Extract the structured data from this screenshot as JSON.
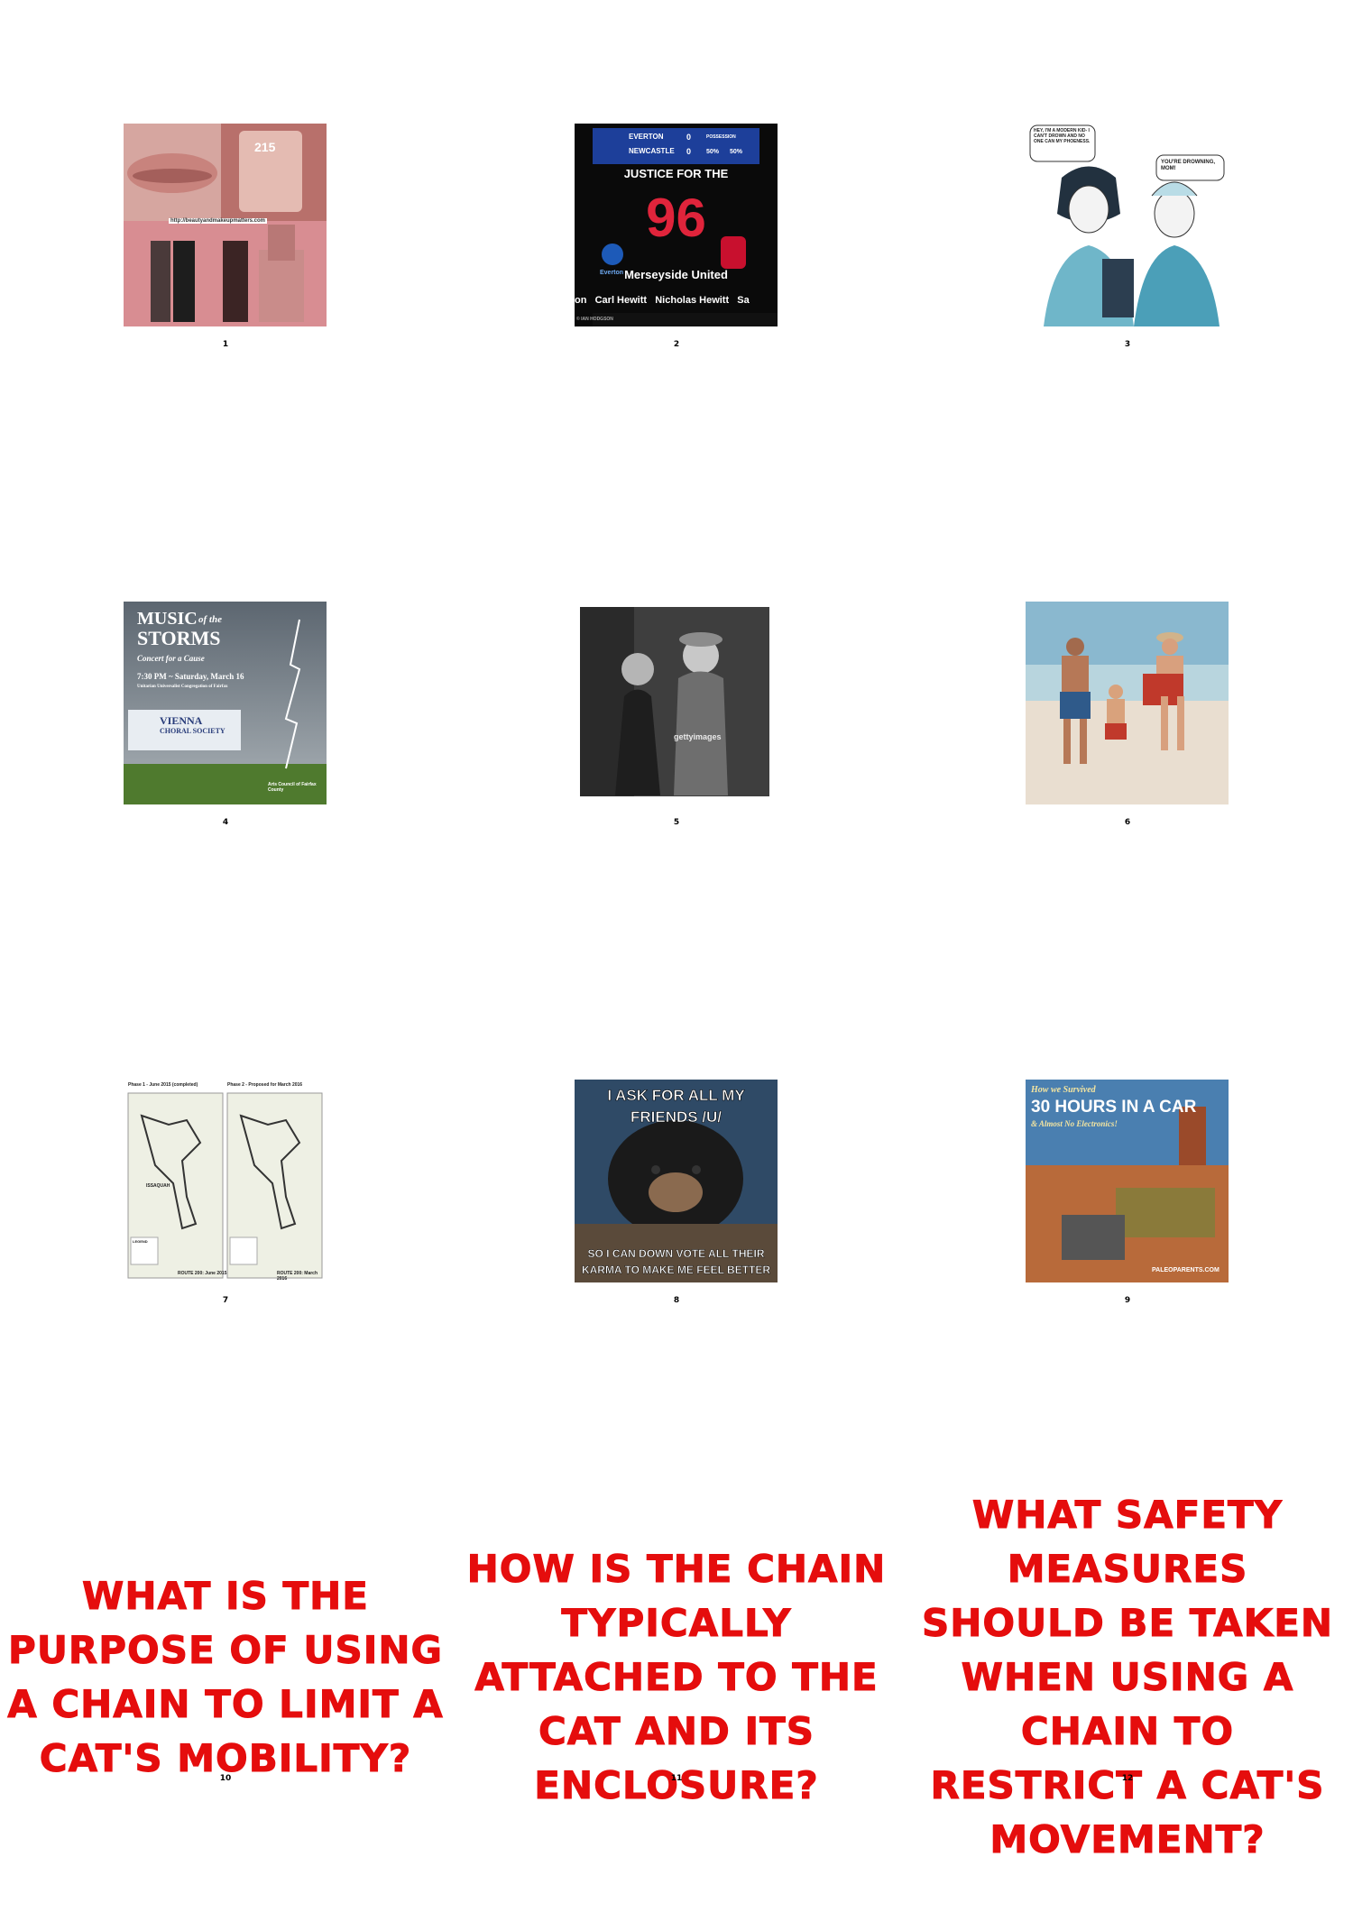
{
  "grid": [
    {
      "number": "1",
      "image": {
        "label": "http://beautyandmakeupmatters.com",
        "shade": "215"
      }
    },
    {
      "number": "2",
      "image": {
        "team1": "EVERTON",
        "team2": "NEWCASTLE",
        "score1": "0",
        "score2": "0",
        "poss_label": "POSSESSION",
        "poss1": "50%",
        "poss2": "50%",
        "headline": "JUSTICE FOR THE",
        "big": "96",
        "left_club": "Everton",
        "subtitle": "Merseyside United",
        "names": "on   Carl Hewitt   Nicholas Hewitt   Sa",
        "credit": "© IAN HODGSON"
      }
    },
    {
      "number": "3",
      "image": {
        "bubble1": "HEY, I'M A MODERN KID- I CAN'T DROWN AND NO ONE CAN MY PHOENESS.",
        "bubble2": "YOU'RE DROWNING, MOM!"
      }
    },
    {
      "number": "4",
      "image": {
        "title1": "MUSIC",
        "title_of": "of the",
        "title2": "STORMS",
        "line1": "Concert for a Cause",
        "line2": "7:30 PM ~ Saturday, March 16",
        "line3": "Unitarian Universalist Congregation of Fairfax",
        "org1": "VIENNA",
        "org2": "CHORAL SOCIETY",
        "sponsor": "Arts Council of Fairfax County"
      }
    },
    {
      "number": "5",
      "image": {
        "watermark": "gettyimages"
      }
    },
    {
      "number": "6",
      "image": {}
    },
    {
      "number": "7",
      "image": {
        "phase1": "Phase 1 - June 2015 (completed)",
        "phase2": "Phase 2 - Proposed for March 2016",
        "town": "ISSAQUAH",
        "legend": "LEGEND",
        "route1": "ROUTE 200: June 2015",
        "route2": "ROUTE 200: March 2016"
      }
    },
    {
      "number": "8",
      "image": {
        "top": "I ASK FOR ALL MY FRIENDS /U/",
        "bottom": "SO I CAN DOWN VOTE ALL THEIR KARMA TO MAKE ME FEEL BETTER"
      }
    },
    {
      "number": "9",
      "image": {
        "pre": "How we Survived",
        "main": "30 HOURS IN A CAR",
        "post": "& Almost No Electronics!",
        "site": "PALEOPARENTS.COM"
      }
    },
    {
      "number": "10",
      "question": "WHAT IS THE PURPOSE OF USING A CHAIN TO LIMIT A CAT'S MOBILITY?"
    },
    {
      "number": "11",
      "question": "HOW IS THE CHAIN TYPICALLY ATTACHED TO THE CAT AND ITS ENCLOSURE?"
    },
    {
      "number": "12",
      "question": "WHAT SAFETY MEASURES SHOULD BE TAKEN WHEN USING A CHAIN TO RESTRICT A CAT'S MOVEMENT?"
    }
  ],
  "colors": {
    "question_red": "#e50d0d"
  }
}
